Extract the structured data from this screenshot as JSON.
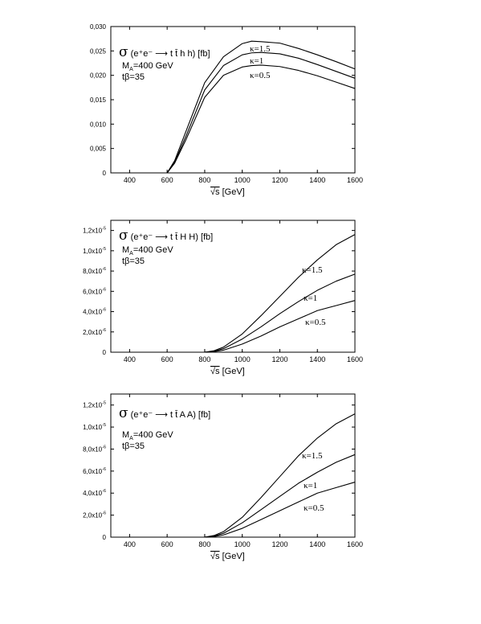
{
  "figure": {
    "ink_color": "#000000",
    "background_color": "#ffffff"
  },
  "chart_data": [
    {
      "type": "line",
      "title_parts": {
        "sigma": "σ",
        "process": "(e⁺e⁻ ⟶ t t̄ h h) [fb]"
      },
      "params": {
        "mass": "M_A=400 GeV",
        "mass_symbol": "M",
        "mass_sub": "A",
        "mass_value": "=400 GeV",
        "tanbeta": "tβ=35"
      },
      "xlabel_unit": "[GeV]",
      "xlabel_sqrt": "√s",
      "xlim": [
        300,
        1600
      ],
      "ylim": [
        0,
        0.03
      ],
      "x_ticks": [
        "400",
        "600",
        "800",
        "1000",
        "1200",
        "1400",
        "1600"
      ],
      "y_ticks": [
        "0",
        "0,005",
        "0,010",
        "0,015",
        "0,020",
        "0,025",
        "0,030"
      ],
      "y_tick_values": [
        0,
        0.005,
        0.01,
        0.015,
        0.02,
        0.025,
        0.03
      ],
      "x": [
        600,
        640,
        700,
        800,
        900,
        1000,
        1050,
        1100,
        1200,
        1300,
        1400,
        1500,
        1600
      ],
      "series": [
        {
          "name": "κ=1.5",
          "values": [
            0,
            0.0025,
            0.0085,
            0.0185,
            0.0238,
            0.0265,
            0.027,
            0.0269,
            0.0266,
            0.0255,
            0.0242,
            0.0228,
            0.0213
          ]
        },
        {
          "name": "κ=1",
          "values": [
            0,
            0.0022,
            0.0075,
            0.017,
            0.022,
            0.0242,
            0.0246,
            0.0247,
            0.0244,
            0.0235,
            0.0222,
            0.0208,
            0.0194
          ]
        },
        {
          "name": "κ=0.5",
          "values": [
            0,
            0.002,
            0.0068,
            0.0155,
            0.02,
            0.0217,
            0.022,
            0.0221,
            0.0218,
            0.021,
            0.0199,
            0.0186,
            0.0173
          ]
        }
      ]
    },
    {
      "type": "line",
      "title_parts": {
        "sigma": "σ",
        "process": "(e⁺e⁻ ⟶ t t̄ H H) [fb]"
      },
      "params": {
        "mass": "M_A=400 GeV",
        "mass_symbol": "M",
        "mass_sub": "A",
        "mass_value": "=400 GeV",
        "tanbeta": "tβ=35"
      },
      "xlabel_unit": "[GeV]",
      "xlabel_sqrt": "√s",
      "xlim": [
        300,
        1600
      ],
      "ylim": [
        0,
        1.3e-05
      ],
      "x_ticks": [
        "400",
        "600",
        "800",
        "1000",
        "1200",
        "1400",
        "1600"
      ],
      "y_tick_mantissas": [
        "2,0x10",
        "4,0x10",
        "6,0x10",
        "8,0x10",
        "1,0x10",
        "1,2x10"
      ],
      "y_tick_exponents": [
        "-6",
        "-6",
        "-6",
        "-6",
        "-5",
        "-5"
      ],
      "y_tick_zero": "0",
      "y_tick_values": [
        0,
        2e-06,
        4e-06,
        6e-06,
        8e-06,
        1e-05,
        1.2e-05
      ],
      "x": [
        800,
        850,
        900,
        1000,
        1100,
        1200,
        1300,
        1400,
        1500,
        1600
      ],
      "series": [
        {
          "name": "κ=1.5",
          "values": [
            0,
            1.5e-07,
            5e-07,
            1.8e-06,
            3.6e-06,
            5.5e-06,
            7.4e-06,
            9.1e-06,
            1.06e-05,
            1.16e-05
          ]
        },
        {
          "name": "κ=1",
          "values": [
            0,
            1e-07,
            3.5e-07,
            1.3e-06,
            2.5e-06,
            3.8e-06,
            5e-06,
            6.1e-06,
            7e-06,
            7.7e-06
          ]
        },
        {
          "name": "κ=0.5",
          "values": [
            0,
            6e-08,
            2e-07,
            8e-07,
            1.6e-06,
            2.5e-06,
            3.3e-06,
            4.1e-06,
            4.6e-06,
            5.1e-06
          ]
        }
      ]
    },
    {
      "type": "line",
      "title_parts": {
        "sigma": "σ",
        "process": "(e⁺e⁻ ⟶ t t̄ A A) [fb]"
      },
      "params": {
        "mass": "M_A=400 GeV",
        "mass_symbol": "M",
        "mass_sub": "A",
        "mass_value": "=400 GeV",
        "tanbeta": "tβ=35"
      },
      "xlabel_unit": "[GeV]",
      "xlabel_sqrt": "√s",
      "xlim": [
        300,
        1600
      ],
      "ylim": [
        0,
        1.3e-05
      ],
      "x_ticks": [
        "400",
        "600",
        "800",
        "1000",
        "1200",
        "1400",
        "1600"
      ],
      "y_tick_mantissas": [
        "2,0x10",
        "4,0x10",
        "6,0x10",
        "8,0x10",
        "1,0x10",
        "1,2x10"
      ],
      "y_tick_exponents": [
        "-6",
        "-6",
        "-6",
        "-6",
        "-5",
        "-5"
      ],
      "y_tick_zero": "0",
      "y_tick_values": [
        0,
        2e-06,
        4e-06,
        6e-06,
        8e-06,
        1e-05,
        1.2e-05
      ],
      "x": [
        800,
        850,
        900,
        1000,
        1100,
        1200,
        1300,
        1400,
        1500,
        1600
      ],
      "series": [
        {
          "name": "κ=1.5",
          "values": [
            0,
            1.5e-07,
            5e-07,
            1.8e-06,
            3.6e-06,
            5.5e-06,
            7.4e-06,
            9e-06,
            1.03e-05,
            1.12e-05
          ]
        },
        {
          "name": "κ=1",
          "values": [
            0,
            1e-07,
            3.5e-07,
            1.3e-06,
            2.5e-06,
            3.7e-06,
            4.9e-06,
            5.9e-06,
            6.8e-06,
            7.5e-06
          ]
        },
        {
          "name": "κ=0.5",
          "values": [
            0,
            6e-08,
            2e-07,
            8e-07,
            1.6e-06,
            2.4e-06,
            3.2e-06,
            4e-06,
            4.5e-06,
            5e-06
          ]
        }
      ]
    }
  ]
}
